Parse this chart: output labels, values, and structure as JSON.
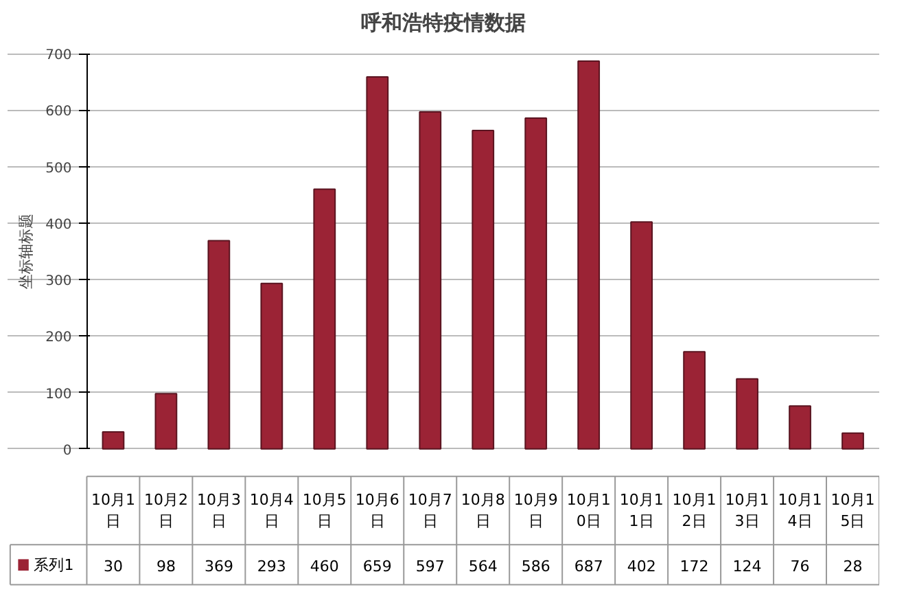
{
  "chart_data": {
    "type": "bar",
    "title": "呼和浩特疫情数据",
    "ylabel": "坐标轴标题",
    "categories": [
      "10月1日",
      "10月2日",
      "10月3日",
      "10月4日",
      "10月5日",
      "10月6日",
      "10月7日",
      "10月8日",
      "10月9日",
      "10月10日",
      "10月11日",
      "10月12日",
      "10月13日",
      "10月14日",
      "10月15日"
    ],
    "series": [
      {
        "name": "系列1",
        "color": "#9b2335",
        "values": [
          30,
          98,
          369,
          293,
          460,
          659,
          597,
          564,
          586,
          687,
          402,
          172,
          124,
          76,
          28
        ]
      }
    ],
    "ylim": [
      0,
      700
    ],
    "yticks": [
      0,
      100,
      200,
      300,
      400,
      500,
      600,
      700
    ],
    "grid": "y",
    "data_labels": true,
    "legend": "bottom"
  }
}
